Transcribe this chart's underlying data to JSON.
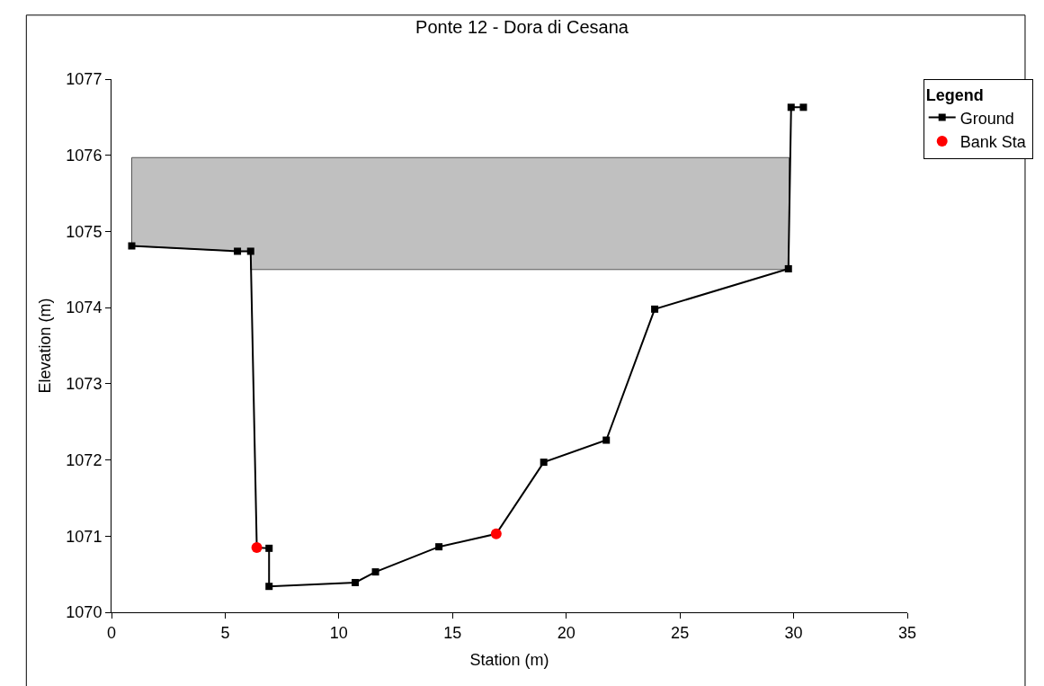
{
  "chart_data": {
    "type": "line",
    "title": "Ponte 12 - Dora di Cesana",
    "xlabel": "Station (m)",
    "ylabel": "Elevation (m)",
    "legend_title": "Legend",
    "legend": "top right",
    "grid": false,
    "xlim": [
      0,
      35
    ],
    "xticks": [
      0,
      5,
      10,
      15,
      20,
      25,
      30,
      35
    ],
    "ylim": [
      1070,
      1077
    ],
    "yticks": [
      1070,
      1071,
      1072,
      1073,
      1074,
      1075,
      1076,
      1077
    ],
    "series": [
      {
        "type": "area",
        "color": "#c0c0c0",
        "x": [
          0.89,
          0.89,
          29.8,
          29.8,
          6.12,
          6.12,
          5.54,
          0.89
        ],
        "values": [
          1074.81,
          1075.97,
          1075.97,
          1074.5,
          1074.5,
          1074.74,
          1074.74,
          1074.81
        ]
      },
      {
        "name": "Ground",
        "color": "#000000",
        "marker": "square",
        "line_style": "solid",
        "x": [
          0.89,
          5.54,
          6.12,
          6.39,
          6.93,
          6.93,
          10.72,
          11.61,
          14.4,
          16.92,
          19.01,
          21.76,
          23.89,
          29.77,
          29.89,
          30.43
        ],
        "values": [
          1074.81,
          1074.74,
          1074.74,
          1070.85,
          1070.84,
          1070.34,
          1070.39,
          1070.53,
          1070.86,
          1071.03,
          1071.97,
          1072.26,
          1073.98,
          1074.51,
          1076.63,
          1076.63
        ]
      },
      {
        "type": "scatter",
        "name": "Bank Sta",
        "color": "#ff0000",
        "marker": "circle",
        "x": [
          6.39,
          16.92
        ],
        "values": [
          1070.85,
          1071.03
        ]
      }
    ]
  }
}
